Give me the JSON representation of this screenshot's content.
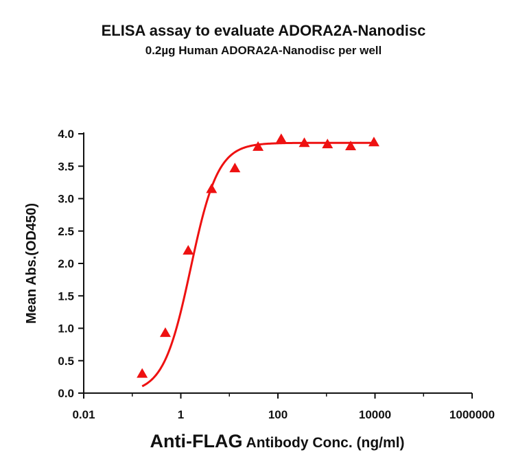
{
  "chart_data": {
    "type": "scatter",
    "title": "ELISA assay to evaluate ADORA2A-Nanodisc",
    "subtitle": "0.2µg Human ADORA2A-Nanodisc per well",
    "ylabel": "Mean Abs.(OD450)",
    "xlabel_main": "Anti-FLAG",
    "xlabel_rest": " Antibody Conc. (ng/ml)",
    "x_scale": "log",
    "xlim": [
      0.01,
      1000000
    ],
    "ylim": [
      0,
      4
    ],
    "x_ticks": [
      0.01,
      1,
      100,
      10000,
      1000000
    ],
    "x_tick_labels": [
      "0.01",
      "1",
      "100",
      "10000",
      "1000000"
    ],
    "y_ticks": [
      0,
      0.5,
      1,
      1.5,
      2,
      2.5,
      3,
      3.5,
      4
    ],
    "y_tick_labels": [
      "0.0",
      "0.5",
      "1.0",
      "1.5",
      "2.0",
      "2.5",
      "3.0",
      "3.5",
      "4.0"
    ],
    "series": [
      {
        "marker": "triangle",
        "color": "#ee1111",
        "x": [
          0.16,
          0.48,
          1.42,
          4.3,
          13.0,
          39,
          117,
          350,
          1050,
          3150,
          9500
        ],
        "y": [
          0.3,
          0.93,
          2.2,
          3.15,
          3.47,
          3.8,
          3.92,
          3.86,
          3.84,
          3.81,
          3.87
        ]
      }
    ],
    "fit_curve": {
      "model": "4PL",
      "color": "#ee1111",
      "bottom": 0,
      "top": 3.86,
      "ec50": 1.6,
      "hill": 1.55
    },
    "grid": false,
    "legend": "none"
  }
}
